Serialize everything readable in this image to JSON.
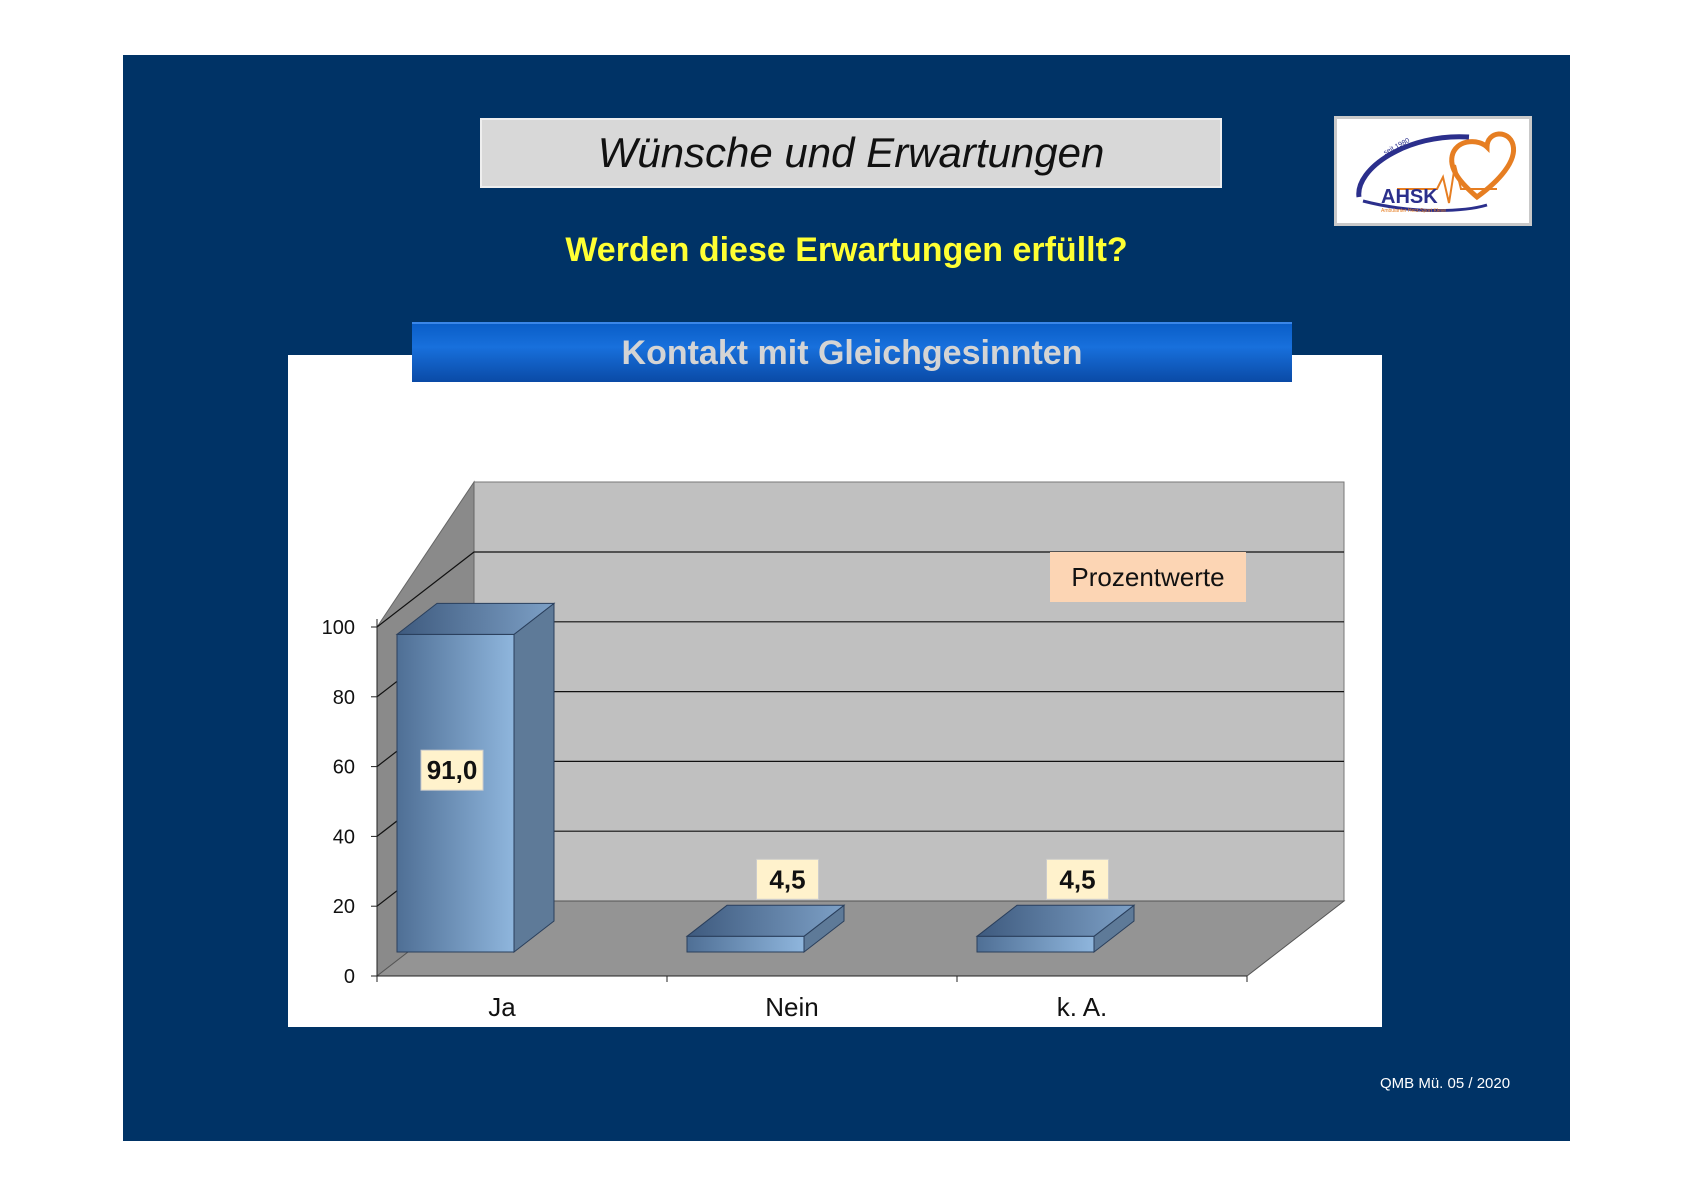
{
  "slide": {
    "title": "Wünsche und Erwartungen",
    "subtitle": "Werden diese Erwartungen erfüllt?",
    "footer": "QMB Mü. 05 / 2020"
  },
  "logo": {
    "text": "AHSK",
    "small_text": "seit 1980",
    "tagline": "Ambulanter Herz-Sport Kleve"
  },
  "chart_data": {
    "type": "bar",
    "title": "Kontakt mit Gleichgesinnten",
    "categories": [
      "Ja",
      "Nein",
      "k. A."
    ],
    "values": [
      91.0,
      4.5,
      4.5
    ],
    "value_labels": [
      "91,0",
      "4,5",
      "4,5"
    ],
    "annotation": "Prozentwerte",
    "ylim": [
      0,
      100
    ],
    "yticks": [
      0,
      20,
      40,
      60,
      80,
      100
    ],
    "grid": true,
    "three_d": true,
    "colors": {
      "bar_front": "#8fb6dd",
      "bar_side": "#5e7a98",
      "back_wall": "#c0c0c0",
      "side_wall": "#8a8a8a",
      "floor": "#949494",
      "label_bg": "#fff2cc",
      "annotation_bg": "#fcd5b4"
    }
  }
}
